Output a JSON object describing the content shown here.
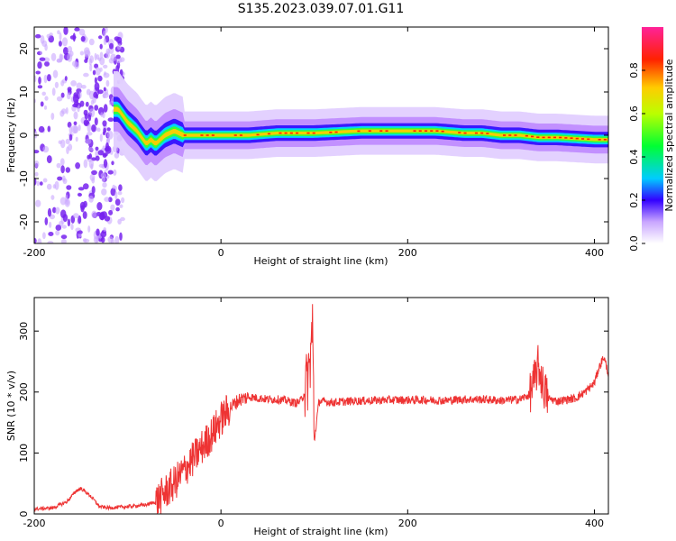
{
  "title": "S135.2023.039.07.01.G11",
  "chart_data": [
    {
      "type": "heatmap",
      "xlabel": "Height of straight line (km)",
      "ylabel": "Frequency (Hz)",
      "xlim": [
        -200,
        415
      ],
      "ylim": [
        -25,
        25
      ],
      "xticks": [
        "-200",
        "0",
        "200",
        "400"
      ],
      "yticks": [
        "-20",
        "-10",
        "0",
        "10",
        "20"
      ],
      "colorbar": {
        "label": "Normalized spectral amplitude",
        "range": [
          0,
          1
        ],
        "ticks": [
          "0.0",
          "0.2",
          "0.4",
          "0.6",
          "0.8"
        ]
      },
      "ridge": {
        "x": [
          -110,
          -100,
          -90,
          -80,
          -75,
          -70,
          -60,
          -50,
          -40,
          -20,
          0,
          30,
          60,
          100,
          150,
          200,
          230,
          260,
          280,
          300,
          320,
          340,
          360,
          400,
          415
        ],
        "frequency": [
          6,
          3,
          1,
          -2,
          -1,
          -2,
          0,
          1,
          0,
          0,
          0,
          0,
          0.5,
          0.5,
          1,
          1,
          1,
          0.5,
          0.5,
          0,
          0,
          -0.5,
          -0.5,
          -1,
          -1
        ]
      },
      "grid": false
    },
    {
      "type": "line",
      "xlabel": "Height of straight line (km)",
      "ylabel": "SNR (10 * v/v)",
      "xlim": [
        -200,
        415
      ],
      "ylim": [
        0,
        355
      ],
      "xticks": [
        "-200",
        "0",
        "200",
        "400"
      ],
      "yticks": [
        "0",
        "100",
        "200",
        "300"
      ],
      "series": [
        {
          "color": "#ee3333",
          "x": [
            -200,
            -180,
            -165,
            -155,
            -150,
            -140,
            -130,
            -120,
            -100,
            -80,
            -70,
            -60,
            -50,
            -40,
            -30,
            -20,
            -10,
            0,
            10,
            20,
            30,
            40,
            50,
            60,
            70,
            80,
            85,
            90,
            95,
            98,
            100,
            105,
            120,
            140,
            160,
            180,
            200,
            220,
            240,
            260,
            280,
            300,
            320,
            330,
            335,
            340,
            345,
            350,
            360,
            380,
            390,
            400,
            405,
            410,
            415
          ],
          "y": [
            8,
            10,
            20,
            38,
            42,
            30,
            12,
            10,
            12,
            15,
            20,
            35,
            50,
            70,
            90,
            110,
            130,
            155,
            175,
            188,
            192,
            190,
            188,
            188,
            186,
            182,
            185,
            200,
            240,
            310,
            120,
            185,
            183,
            185,
            186,
            187,
            187,
            187,
            186,
            188,
            188,
            186,
            188,
            195,
            215,
            245,
            210,
            190,
            185,
            190,
            200,
            215,
            240,
            258,
            230
          ]
        }
      ],
      "grid": false
    }
  ]
}
